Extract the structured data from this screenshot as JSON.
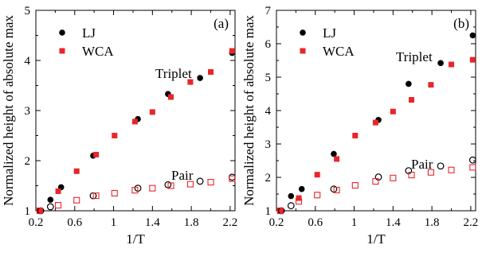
{
  "chart_data": [
    {
      "type": "scatter",
      "panel_label": "(a)",
      "title": "",
      "xlabel": "1/T",
      "ylabel": "Normalized height of absolute max",
      "xlim": [
        0.2,
        2.25
      ],
      "ylim": [
        1,
        5
      ],
      "xticks": [
        "0.2",
        "0.6",
        "1",
        "1.4",
        "1.8",
        "2.2"
      ],
      "yticks": [
        "1",
        "2",
        "3",
        "4",
        "5"
      ],
      "legend": {
        "position": "top-left",
        "entries": [
          "LJ",
          "WCA"
        ]
      },
      "annotations": [
        "Triplet",
        "Pair"
      ],
      "series": [
        {
          "name": "LJ",
          "group": "Triplet",
          "marker": "filled-circle",
          "color": "#000000",
          "x": [
            0.25,
            0.35,
            0.46,
            0.79,
            1.25,
            1.56,
            1.89,
            2.22
          ],
          "y": [
            1.0,
            1.22,
            1.47,
            2.1,
            2.83,
            3.33,
            3.65,
            4.15
          ]
        },
        {
          "name": "WCA",
          "group": "Triplet",
          "marker": "filled-square",
          "color": "#e8262b",
          "x": [
            0.24,
            0.43,
            0.62,
            0.82,
            1.01,
            1.22,
            1.4,
            1.59,
            1.79,
            2.0,
            2.22
          ],
          "y": [
            1.0,
            1.39,
            1.79,
            2.12,
            2.5,
            2.78,
            2.97,
            3.27,
            3.57,
            3.77,
            4.19
          ]
        },
        {
          "name": "LJ",
          "group": "Pair",
          "marker": "open-circle",
          "color": "#000000",
          "x": [
            0.25,
            0.35,
            0.79,
            1.25,
            1.56,
            1.89,
            2.22
          ],
          "y": [
            1.0,
            1.08,
            1.3,
            1.45,
            1.52,
            1.59,
            1.67
          ]
        },
        {
          "name": "WCA",
          "group": "Pair",
          "marker": "open-square",
          "color": "#e8262b",
          "x": [
            0.24,
            0.43,
            0.62,
            0.82,
            1.01,
            1.22,
            1.4,
            1.59,
            1.79,
            2.0,
            2.22
          ],
          "y": [
            1.0,
            1.11,
            1.21,
            1.3,
            1.35,
            1.41,
            1.45,
            1.5,
            1.53,
            1.57,
            1.64
          ]
        }
      ]
    },
    {
      "type": "scatter",
      "panel_label": "(b)",
      "title": "",
      "xlabel": "1/T",
      "ylabel": "Normalized height of absolute max",
      "xlim": [
        0.2,
        2.25
      ],
      "ylim": [
        1,
        7
      ],
      "xticks": [
        "0.2",
        "0.6",
        "1",
        "1.4",
        "1.8",
        "2.2"
      ],
      "yticks": [
        "1",
        "2",
        "3",
        "4",
        "5",
        "6",
        "7"
      ],
      "legend": {
        "position": "top-left",
        "entries": [
          "LJ",
          "WCA"
        ]
      },
      "annotations": [
        "Triplet",
        "Pair"
      ],
      "series": [
        {
          "name": "LJ",
          "group": "Triplet",
          "marker": "filled-circle",
          "color": "#000000",
          "x": [
            0.25,
            0.35,
            0.46,
            0.79,
            1.25,
            1.56,
            1.89,
            2.22
          ],
          "y": [
            1.0,
            1.44,
            1.65,
            2.7,
            3.72,
            4.8,
            5.42,
            6.25
          ]
        },
        {
          "name": "WCA",
          "group": "Triplet",
          "marker": "filled-square",
          "color": "#e8262b",
          "x": [
            0.24,
            0.43,
            0.62,
            0.82,
            1.01,
            1.22,
            1.4,
            1.59,
            1.79,
            2.0,
            2.22
          ],
          "y": [
            1.0,
            1.38,
            2.08,
            2.55,
            3.25,
            3.64,
            3.97,
            4.32,
            4.77,
            5.38,
            5.52
          ]
        },
        {
          "name": "LJ",
          "group": "Pair",
          "marker": "open-circle",
          "color": "#000000",
          "x": [
            0.25,
            0.35,
            0.79,
            1.25,
            1.56,
            1.89,
            2.22
          ],
          "y": [
            1.0,
            1.15,
            1.65,
            2.01,
            2.2,
            2.34,
            2.52
          ]
        },
        {
          "name": "WCA",
          "group": "Pair",
          "marker": "open-square",
          "color": "#e8262b",
          "x": [
            0.24,
            0.43,
            0.62,
            0.82,
            1.01,
            1.22,
            1.4,
            1.59,
            1.79,
            2.0,
            2.22
          ],
          "y": [
            1.0,
            1.28,
            1.47,
            1.62,
            1.76,
            1.88,
            1.98,
            2.07,
            2.15,
            2.22,
            2.3
          ]
        }
      ]
    }
  ]
}
